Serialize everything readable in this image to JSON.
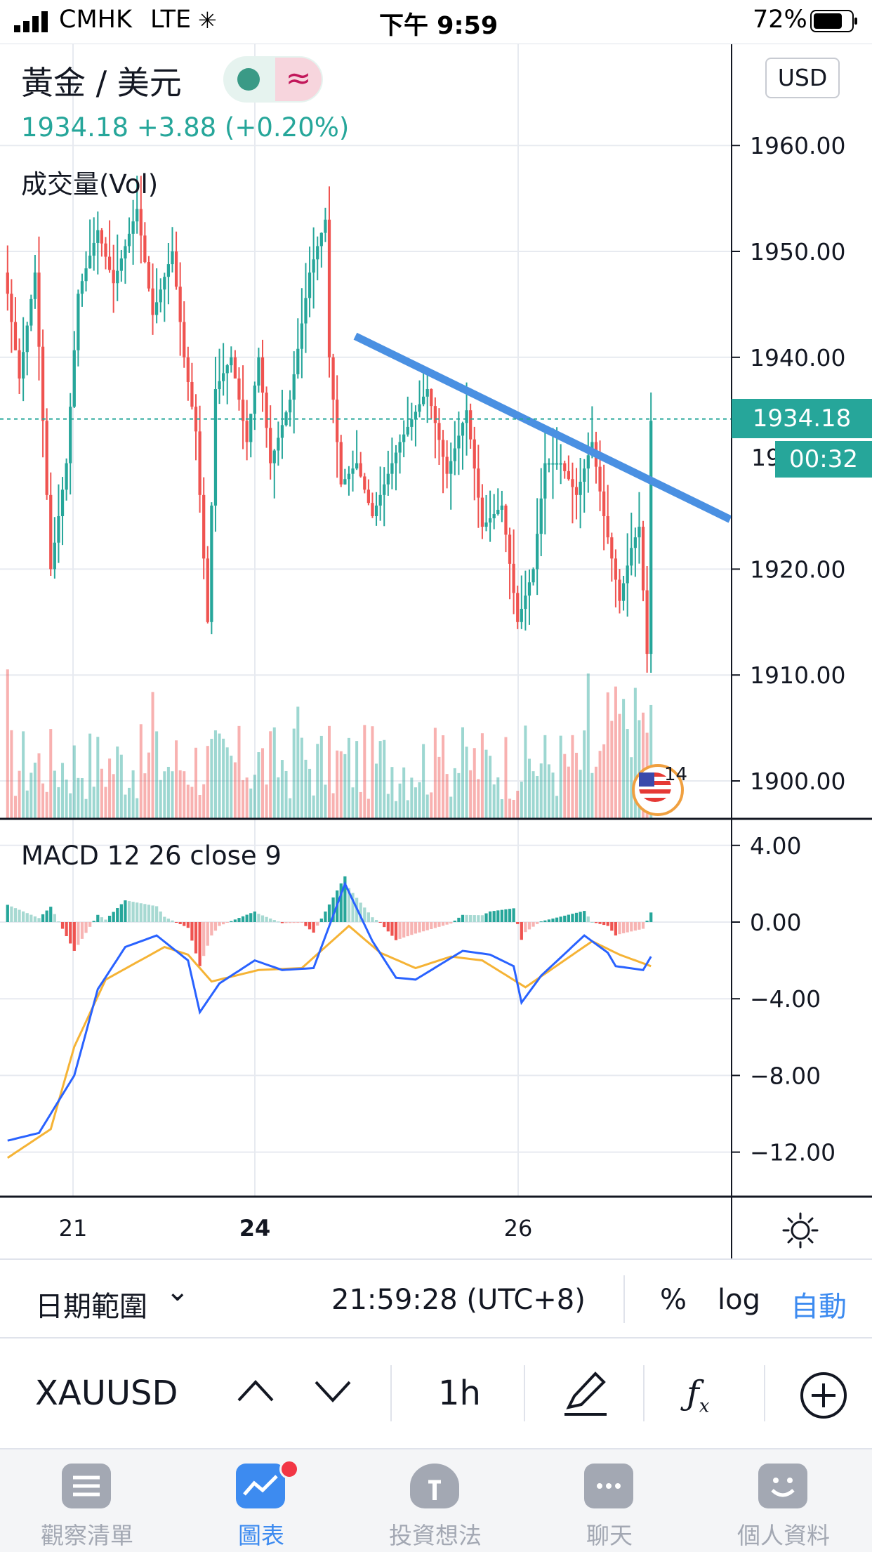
{
  "status_bar": {
    "carrier": "CMHK",
    "network": "LTE",
    "time": "下午 9:59",
    "battery": "72%"
  },
  "header": {
    "symbol_title": "黃金 / 美元",
    "price_line": "1934.18  +3.88 (+0.20%)",
    "currency_button": "USD",
    "volume_label": "成交量(Vol)",
    "macd_label": "MACD 12 26 close 9"
  },
  "price_tag": {
    "value": "1934.18",
    "countdown": "00:32",
    "partial_label": "19"
  },
  "event_badge": {
    "count": "14"
  },
  "range_bar": {
    "date_range": "日期範圍",
    "chevron": "⌄",
    "time": "21:59:28 (UTC+8)",
    "percent": "%",
    "log": "log",
    "auto": "自動"
  },
  "tool_bar": {
    "symbol": "XAUUSD",
    "interval": "1h",
    "icons": [
      "chevron-up-icon",
      "chevron-down-icon",
      "pen-icon",
      "fx-icon",
      "plus-circle-icon"
    ]
  },
  "tabs": [
    {
      "label": "觀察清單",
      "icon": "list-icon"
    },
    {
      "label": "圖表",
      "icon": "chart-icon",
      "active": true
    },
    {
      "label": "投資想法",
      "icon": "bulb-icon"
    },
    {
      "label": "聊天",
      "icon": "chat-icon"
    },
    {
      "label": "個人資料",
      "icon": "smile-icon"
    }
  ],
  "colors": {
    "up": "#26a69a",
    "down": "#ef5350",
    "trendline": "#4a90e2",
    "macd": "#2962ff",
    "signal": "#f5b335",
    "accent": "#3d8bf0"
  },
  "chart_data": [
    {
      "type": "candlestick",
      "symbol": "XAUUSD",
      "interval": "1h",
      "price_axis_ticks": [
        "1960.00",
        "1950.00",
        "1940.00",
        "1920.00",
        "1910.00",
        "1900.00"
      ],
      "ylim": [
        1896,
        1965
      ],
      "date_ticks": [
        "21",
        "24",
        "26"
      ],
      "last_price": 1934.18,
      "change": "+3.88 (+0.20%)",
      "price_segments": [
        [
          1946,
          1938,
          1948,
          1920,
          1930,
          1946,
          1952,
          1947,
          1954,
          1944,
          1950,
          1940,
          1933,
          1915,
          1937,
          1940,
          1932,
          1940,
          1930,
          1936,
          1948,
          1953,
          1940,
          1928,
          1930,
          1925,
          1929,
          1932,
          1937,
          1929,
          1935,
          1924,
          1926,
          1915,
          1920,
          1930,
          1930,
          1927,
          1932,
          1925,
          1917,
          1922,
          1924,
          1912,
          1934
        ],
        [
          0,
          3,
          7,
          11,
          15,
          18,
          23,
          27,
          33,
          37,
          42,
          45,
          48,
          51,
          53,
          57,
          61,
          64,
          67,
          72,
          77,
          81,
          82,
          85,
          89,
          93,
          97,
          100,
          107,
          112,
          117,
          121,
          126,
          130,
          134,
          137,
          141,
          145,
          149,
          152,
          156,
          159,
          161,
          163,
          164
        ]
      ],
      "trendline": {
        "from": [
          1942,
          "24"
        ],
        "to": [
          1925,
          "now"
        ]
      },
      "volume_series": "Vol"
    },
    {
      "type": "line",
      "title": "MACD 12 26 close 9",
      "y_ticks": [
        "4.00",
        "0.00",
        "−4.00",
        "−8.00",
        "−12.00"
      ],
      "ylim": [
        -14,
        5
      ],
      "macd_segments": [
        [
          -11.4,
          -11.0,
          -8.0,
          -3.5,
          -1.3,
          -0.7,
          -2.0,
          -4.7,
          -3.2,
          -2.0,
          -2.5,
          -2.4,
          2.0,
          -1.0,
          -2.9,
          -3.0,
          -1.5,
          -1.7,
          -2.3,
          -4.2,
          -2.8,
          -0.7,
          -1.6,
          -2.3,
          -2.5,
          -1.8
        ],
        [
          0,
          8,
          17,
          23,
          30,
          38,
          46,
          49,
          54,
          63,
          70,
          78,
          86,
          93,
          99,
          104,
          116,
          123,
          129,
          131,
          136,
          147,
          153,
          155,
          162,
          164
        ]
      ],
      "signal_segments": [
        [
          -12.3,
          -10.8,
          -6.5,
          -3.0,
          -1.3,
          -1.7,
          -3.1,
          -2.5,
          -2.4,
          -0.2,
          -1.6,
          -2.4,
          -1.8,
          -2.0,
          -3.4,
          -1.0,
          -1.7,
          -2.3
        ],
        [
          0,
          11,
          17,
          25,
          40,
          46,
          52,
          64,
          75,
          87,
          95,
          104,
          113,
          121,
          132,
          149,
          156,
          164
        ]
      ],
      "histogram_series": "MACD - Signal"
    }
  ]
}
